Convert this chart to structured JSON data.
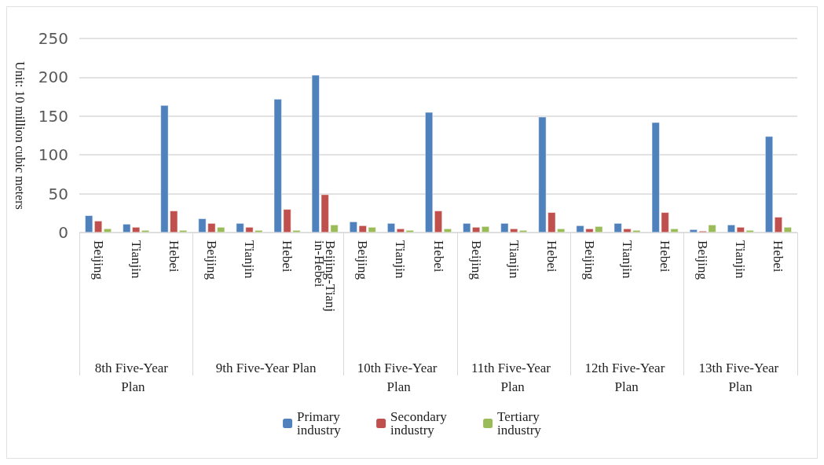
{
  "chart_data": {
    "type": "bar",
    "ylabel": "Unit: 10 million cubic meters",
    "categories": [
      "Beijing",
      "Tianjin",
      "Hebei",
      "Beijing",
      "Tianjin",
      "Hebei",
      "Beijing-Tianjin-Hebei",
      "Beijing",
      "Tianjin",
      "Hebei",
      "Beijing",
      "Tianjin",
      "Hebei",
      "Beijing",
      "Tianjin",
      "Hebei",
      "Beijing",
      "Tianjin",
      "Hebei"
    ],
    "series": [
      {
        "name": "Primary industry",
        "color": "#4f81bd",
        "values": [
          22,
          11,
          164,
          18,
          12,
          172,
          203,
          14,
          12,
          155,
          12,
          12,
          149,
          9,
          12,
          142,
          4,
          10,
          124
        ]
      },
      {
        "name": "Secondary industry",
        "color": "#c0504d",
        "values": [
          15,
          7,
          28,
          12,
          7,
          30,
          49,
          9,
          5,
          28,
          7,
          5,
          26,
          5,
          5,
          26,
          2,
          7,
          20
        ]
      },
      {
        "name": "Tertiary industry",
        "color": "#9bbb59",
        "values": [
          5,
          3,
          3,
          7,
          3,
          3,
          10,
          7,
          3,
          5,
          8,
          3,
          5,
          8,
          3,
          5,
          10,
          3,
          7
        ]
      }
    ],
    "annotations": [
      "8th Five-Year Plan",
      "9th Five-Year Plan",
      "10th Five-Year Plan",
      "11th Five-Year Plan",
      "12th Five-Year Plan",
      "13th Five-Year Plan"
    ],
    "ylim": [
      0,
      250
    ],
    "yticks": [
      0,
      50,
      100,
      150,
      200,
      250
    ],
    "grid": "y",
    "legend": "bottom"
  }
}
